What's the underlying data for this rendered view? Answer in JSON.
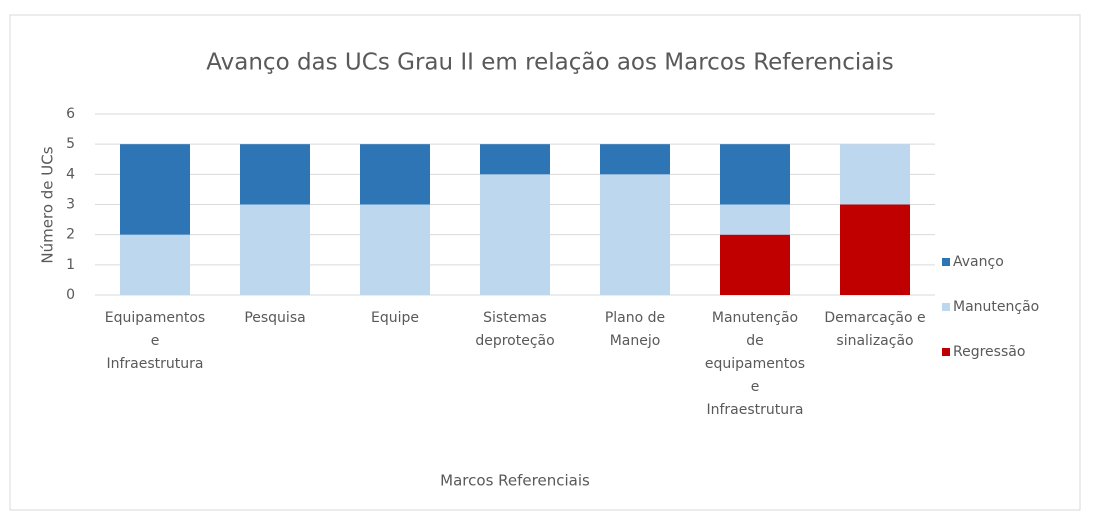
{
  "chart_data": {
    "type": "stacked_bar",
    "title": "Avanço das UCs Grau II em relação aos Marcos Referenciais",
    "x_label": "Marcos Referenciais",
    "y_label": "Número de UCs",
    "categories": [
      "Equipamentos e Infraestrutura",
      "Pesquisa",
      "Equipe",
      "Sistemas deproteção",
      "Plano de Manejo",
      "Manutenção de equipamentos e Infraestrutura",
      "Demarcação e sinalização"
    ],
    "series": [
      {
        "name": "Regressão",
        "color": "#c00000",
        "values": [
          0,
          0,
          0,
          0,
          0,
          2,
          3
        ]
      },
      {
        "name": "Manutenção",
        "color": "#bdd7ee",
        "values": [
          2,
          3,
          3,
          4,
          4,
          1,
          2
        ]
      },
      {
        "name": "Avanço",
        "color": "#2e75b6",
        "values": [
          3,
          2,
          2,
          1,
          1,
          2,
          0
        ]
      }
    ],
    "ylim": [
      0,
      6
    ],
    "yticks": [
      0,
      1,
      2,
      3,
      4,
      5,
      6
    ],
    "grid": true,
    "legend": "right"
  }
}
